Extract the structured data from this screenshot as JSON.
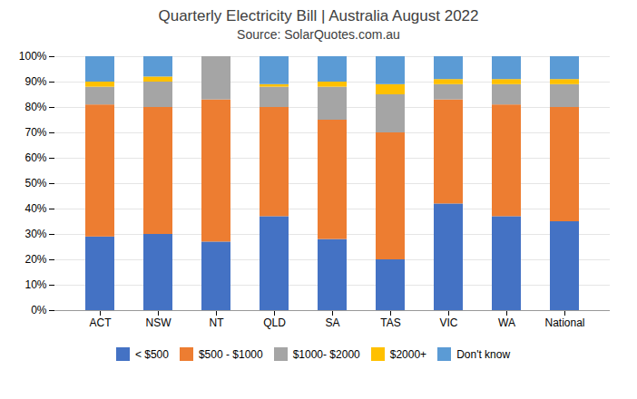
{
  "chart_data": {
    "type": "bar",
    "stacked": true,
    "title": "Quarterly Electricity Bill | Australia August 2022",
    "subtitle": "Source: SolarQuotes.com.au",
    "categories": [
      "ACT",
      "NSW",
      "NT",
      "QLD",
      "SA",
      "TAS",
      "VIC",
      "WA",
      "National"
    ],
    "series": [
      {
        "name": "< $500",
        "color": "#4472C4",
        "values": [
          29,
          30,
          27,
          37,
          28,
          20,
          42,
          37,
          35
        ]
      },
      {
        "name": "$500 - $1000",
        "color": "#ED7D31",
        "values": [
          52,
          50,
          56,
          43,
          47,
          50,
          41,
          44,
          45
        ]
      },
      {
        "name": "$1000- $2000",
        "color": "#A5A5A5",
        "values": [
          7,
          10,
          17,
          8,
          13,
          15,
          6,
          8,
          9
        ]
      },
      {
        "name": "$2000+",
        "color": "#FFC000",
        "values": [
          2,
          2,
          0,
          1,
          2,
          4,
          2,
          2,
          2
        ]
      },
      {
        "name": "Don't know",
        "color": "#5B9BD5",
        "values": [
          10,
          8,
          0,
          11,
          10,
          11,
          9,
          9,
          9
        ]
      }
    ],
    "ylim": [
      0,
      100
    ],
    "yticks": [
      {
        "value": 0,
        "label": "0%"
      },
      {
        "value": 10,
        "label": "10%"
      },
      {
        "value": 20,
        "label": "20%"
      },
      {
        "value": 30,
        "label": "30%"
      },
      {
        "value": 40,
        "label": "40%"
      },
      {
        "value": 50,
        "label": "50%"
      },
      {
        "value": 60,
        "label": "60%"
      },
      {
        "value": 70,
        "label": "70%"
      },
      {
        "value": 80,
        "label": "80%"
      },
      {
        "value": 90,
        "label": "90%"
      },
      {
        "value": 100,
        "label": "100%"
      }
    ],
    "grid": true,
    "legend": "bottom"
  }
}
